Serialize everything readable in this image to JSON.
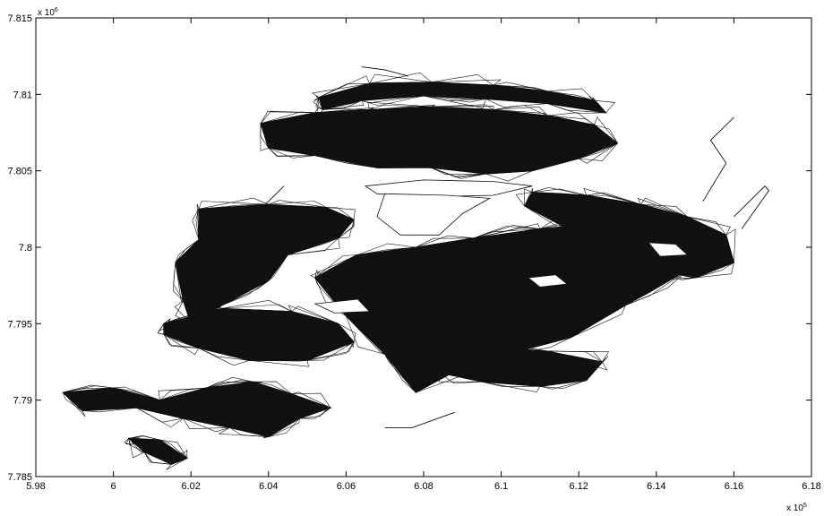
{
  "chart_data": {
    "type": "line",
    "title": "",
    "xlabel": "",
    "ylabel": "",
    "x_multiplier_label": "x 10",
    "x_multiplier_exponent": "5",
    "y_multiplier_label": "x 10",
    "y_multiplier_exponent": "6",
    "xlim": [
      5.98,
      6.18
    ],
    "ylim": [
      7.785,
      7.815
    ],
    "x_ticks": [
      5.98,
      6.0,
      6.02,
      6.04,
      6.06,
      6.08,
      6.1,
      6.12,
      6.14,
      6.16,
      6.18
    ],
    "x_tick_labels": [
      "5.98",
      "6",
      "6.02",
      "6.04",
      "6.06",
      "6.08",
      "6.1",
      "6.12",
      "6.14",
      "6.16",
      "6.18"
    ],
    "y_ticks": [
      7.785,
      7.79,
      7.795,
      7.8,
      7.805,
      7.81,
      7.815
    ],
    "y_tick_labels": [
      "7.785",
      "7.79",
      "7.795",
      "7.8",
      "7.805",
      "7.81",
      "7.815"
    ],
    "grid": false,
    "legend": "none",
    "line_color": "#111111",
    "dense_regions": [
      {
        "name": "central-core",
        "points": [
          [
            6.063,
            7.7995
          ],
          [
            6.078,
            7.8
          ],
          [
            6.093,
            7.8006
          ],
          [
            6.11,
            7.8012
          ],
          [
            6.126,
            7.8016
          ],
          [
            6.14,
            7.8004
          ],
          [
            6.148,
            7.7985
          ],
          [
            6.132,
            7.7962
          ],
          [
            6.118,
            7.7941
          ],
          [
            6.1,
            7.7929
          ],
          [
            6.089,
            7.792
          ],
          [
            6.078,
            7.7905
          ],
          [
            6.07,
            7.793
          ],
          [
            6.06,
            7.7955
          ],
          [
            6.052,
            7.798
          ]
        ]
      },
      {
        "name": "north-band",
        "points": [
          [
            6.038,
            7.8081
          ],
          [
            6.052,
            7.8088
          ],
          [
            6.066,
            7.809
          ],
          [
            6.082,
            7.8092
          ],
          [
            6.098,
            7.809
          ],
          [
            6.112,
            7.8086
          ],
          [
            6.124,
            7.808
          ],
          [
            6.13,
            7.8068
          ],
          [
            6.12,
            7.8058
          ],
          [
            6.108,
            7.805
          ],
          [
            6.096,
            7.8048
          ],
          [
            6.082,
            7.8052
          ],
          [
            6.068,
            7.8052
          ],
          [
            6.052,
            7.806
          ],
          [
            6.04,
            7.8065
          ]
        ]
      },
      {
        "name": "north-ring",
        "points": [
          [
            6.053,
            7.8098
          ],
          [
            6.066,
            7.8107
          ],
          [
            6.082,
            7.8108
          ],
          [
            6.098,
            7.8106
          ],
          [
            6.112,
            7.8102
          ],
          [
            6.124,
            7.8096
          ],
          [
            6.127,
            7.8088
          ],
          [
            6.112,
            7.8094
          ],
          [
            6.096,
            7.8097
          ],
          [
            6.08,
            7.8099
          ],
          [
            6.064,
            7.8096
          ],
          [
            6.054,
            7.809
          ]
        ]
      },
      {
        "name": "west-block",
        "points": [
          [
            6.022,
            7.8025
          ],
          [
            6.04,
            7.8028
          ],
          [
            6.055,
            7.8026
          ],
          [
            6.062,
            7.8018
          ],
          [
            6.058,
            7.8006
          ],
          [
            6.045,
            7.7995
          ],
          [
            6.04,
            7.7978
          ],
          [
            6.028,
            7.7962
          ],
          [
            6.02,
            7.795
          ],
          [
            6.018,
            7.7965
          ],
          [
            6.016,
            7.799
          ],
          [
            6.022,
            7.8005
          ]
        ]
      },
      {
        "name": "southwest-lobe",
        "points": [
          [
            6.013,
            7.795
          ],
          [
            6.028,
            7.796
          ],
          [
            6.046,
            7.7958
          ],
          [
            6.058,
            7.795
          ],
          [
            6.062,
            7.7938
          ],
          [
            6.05,
            7.7926
          ],
          [
            6.035,
            7.7926
          ],
          [
            6.022,
            7.7934
          ],
          [
            6.013,
            7.7943
          ]
        ]
      },
      {
        "name": "east-lobe",
        "points": [
          [
            6.108,
            7.8036
          ],
          [
            6.122,
            7.8034
          ],
          [
            6.136,
            7.8028
          ],
          [
            6.148,
            7.802
          ],
          [
            6.158,
            7.8008
          ],
          [
            6.16,
            7.799
          ],
          [
            6.15,
            7.798
          ],
          [
            6.14,
            7.7985
          ],
          [
            6.128,
            7.8
          ],
          [
            6.115,
            7.8015
          ],
          [
            6.106,
            7.8027
          ]
        ]
      },
      {
        "name": "south-lobe",
        "points": [
          [
            6.08,
            7.793
          ],
          [
            6.096,
            7.7935
          ],
          [
            6.112,
            7.7932
          ],
          [
            6.126,
            7.7925
          ],
          [
            6.122,
            7.7913
          ],
          [
            6.11,
            7.7909
          ],
          [
            6.095,
            7.7912
          ],
          [
            6.084,
            7.7918
          ]
        ]
      },
      {
        "name": "southwest-chain",
        "points": [
          [
            5.987,
            7.7905
          ],
          [
            6.0,
            7.7908
          ],
          [
            6.012,
            7.79
          ],
          [
            6.024,
            7.7908
          ],
          [
            6.036,
            7.7912
          ],
          [
            6.046,
            7.7904
          ],
          [
            6.056,
            7.7895
          ],
          [
            6.048,
            7.7888
          ],
          [
            6.04,
            7.7876
          ],
          [
            6.03,
            7.7882
          ],
          [
            6.018,
            7.7888
          ],
          [
            6.006,
            7.7895
          ],
          [
            5.992,
            7.7893
          ]
        ]
      },
      {
        "name": "south-islet",
        "points": [
          [
            6.004,
            7.7875
          ],
          [
            6.012,
            7.7874
          ],
          [
            6.019,
            7.7862
          ],
          [
            6.015,
            7.7858
          ],
          [
            6.008,
            7.7866
          ]
        ]
      }
    ],
    "holes": [
      {
        "name": "north-hole",
        "points": [
          [
            6.065,
            7.804
          ],
          [
            6.08,
            7.8044
          ],
          [
            6.098,
            7.8043
          ],
          [
            6.108,
            7.804
          ],
          [
            6.098,
            7.8034
          ],
          [
            6.082,
            7.8033
          ],
          [
            6.068,
            7.8035
          ]
        ]
      },
      {
        "name": "central-hole",
        "points": [
          [
            6.07,
            7.8035
          ],
          [
            6.086,
            7.8034
          ],
          [
            6.097,
            7.8032
          ],
          [
            6.09,
            7.8022
          ],
          [
            6.084,
            7.8008
          ],
          [
            6.074,
            7.8008
          ],
          [
            6.068,
            7.802
          ]
        ]
      },
      {
        "name": "east-hole",
        "points": [
          [
            6.138,
            7.8003
          ],
          [
            6.145,
            7.8002
          ],
          [
            6.148,
            7.7995
          ],
          [
            6.141,
            7.7994
          ]
        ]
      },
      {
        "name": "mid-hole",
        "points": [
          [
            6.107,
            7.798
          ],
          [
            6.114,
            7.7982
          ],
          [
            6.117,
            7.7976
          ],
          [
            6.11,
            7.7974
          ]
        ]
      },
      {
        "name": "west-hole",
        "points": [
          [
            6.052,
            7.7963
          ],
          [
            6.063,
            7.7966
          ],
          [
            6.066,
            7.7958
          ],
          [
            6.057,
            7.7957
          ]
        ]
      }
    ],
    "isolated_segments": [
      {
        "name": "northern-outlier",
        "points": [
          [
            6.064,
            7.8118
          ],
          [
            6.07,
            7.8116
          ],
          [
            6.076,
            7.8112
          ]
        ]
      },
      {
        "name": "eastern-spur",
        "points": [
          [
            6.152,
            7.803
          ],
          [
            6.158,
            7.8055
          ],
          [
            6.154,
            7.807
          ],
          [
            6.16,
            7.8085
          ]
        ]
      },
      {
        "name": "far-east-tip",
        "points": [
          [
            6.16,
            7.802
          ],
          [
            6.168,
            7.804
          ],
          [
            6.169,
            7.8037
          ],
          [
            6.162,
            7.8012
          ]
        ]
      },
      {
        "name": "southern-dash",
        "points": [
          [
            6.07,
            7.7882
          ],
          [
            6.077,
            7.7882
          ],
          [
            6.088,
            7.7892
          ]
        ]
      },
      {
        "name": "west-spur",
        "points": [
          [
            6.038,
            7.8025
          ],
          [
            6.044,
            7.804
          ]
        ]
      }
    ]
  }
}
